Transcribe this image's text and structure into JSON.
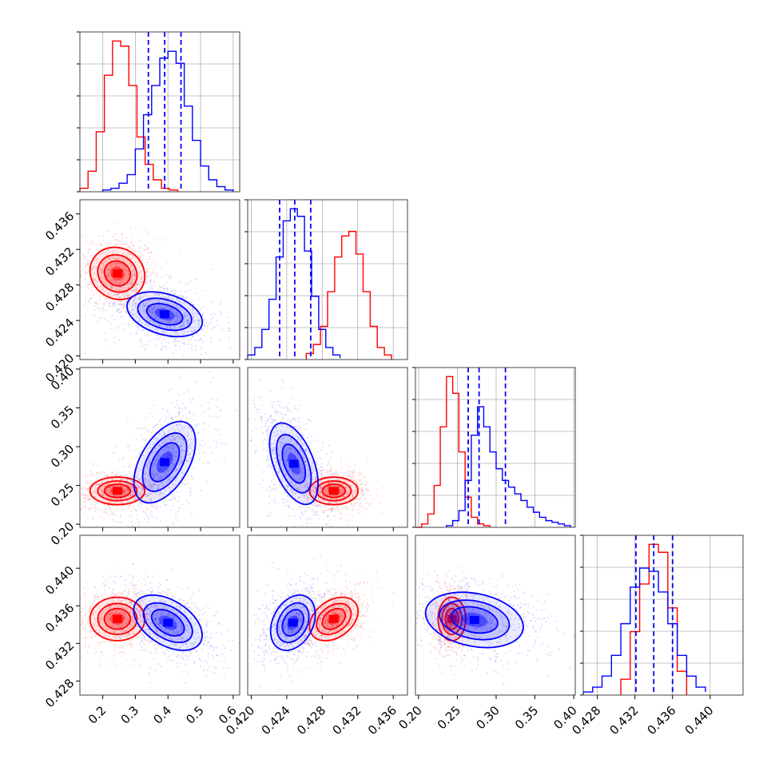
{
  "chart_data": {
    "type": "corner",
    "grid": true,
    "colors": {
      "red": "#ff0000",
      "blue": "#0000ff",
      "grid": "#b0b0b0",
      "frame": "#000000"
    },
    "series": [
      {
        "color": "#ff0000"
      },
      {
        "color": "#0000ff"
      }
    ],
    "params": [
      {
        "range": [
          0.13,
          0.62
        ],
        "ticks": [
          "0.2",
          "0.3",
          "0.4",
          "0.5",
          "0.6"
        ],
        "tick_values": [
          0.2,
          0.3,
          0.4,
          0.5,
          0.6
        ]
      },
      {
        "range": [
          0.4196,
          0.4376
        ],
        "ticks": [
          "0.420",
          "0.424",
          "0.428",
          "0.432",
          "0.436"
        ],
        "tick_values": [
          0.42,
          0.424,
          0.428,
          0.432,
          0.436
        ]
      },
      {
        "range": [
          0.196,
          0.402
        ],
        "ticks": [
          "0.20",
          "0.25",
          "0.30",
          "0.35",
          "0.40"
        ],
        "tick_values": [
          0.2,
          0.25,
          0.3,
          0.35,
          0.4
        ]
      },
      {
        "range": [
          0.4265,
          0.4435
        ],
        "ticks": [
          "0.428",
          "0.432",
          "0.436",
          "0.440"
        ],
        "tick_values": [
          0.428,
          0.432,
          0.436,
          0.44
        ]
      }
    ],
    "histograms": [
      {
        "param": 0,
        "red": {
          "edges": [
            0.13,
            0.155,
            0.18,
            0.205,
            0.23,
            0.255,
            0.28,
            0.305,
            0.33,
            0.355,
            0.38,
            0.405,
            0.43
          ],
          "counts": [
            2,
            12,
            35,
            68,
            88,
            85,
            62,
            32,
            16,
            7,
            2,
            1
          ]
        },
        "blue": {
          "edges": [
            0.2,
            0.225,
            0.25,
            0.275,
            0.3,
            0.325,
            0.35,
            0.375,
            0.4,
            0.425,
            0.45,
            0.475,
            0.5,
            0.525,
            0.55,
            0.575,
            0.6
          ],
          "counts": [
            1,
            2,
            5,
            10,
            25,
            45,
            62,
            78,
            82,
            75,
            50,
            30,
            15,
            7,
            3,
            1
          ]
        },
        "blue_quantiles": [
          0.34,
          0.39,
          0.44
        ]
      },
      {
        "param": 1,
        "red": {
          "edges": [
            0.4262,
            0.427,
            0.4278,
            0.4286,
            0.4294,
            0.4302,
            0.431,
            0.4318,
            0.4326,
            0.4334,
            0.4342,
            0.435,
            0.4358
          ],
          "counts": [
            4,
            10,
            22,
            45,
            68,
            82,
            85,
            70,
            45,
            22,
            8,
            3
          ]
        },
        "blue": {
          "edges": [
            0.4196,
            0.4204,
            0.4212,
            0.422,
            0.4228,
            0.4236,
            0.4244,
            0.4252,
            0.426,
            0.4268,
            0.4276,
            0.4284,
            0.4292,
            0.43
          ],
          "counts": [
            3,
            8,
            20,
            40,
            68,
            92,
            100,
            95,
            72,
            42,
            20,
            8,
            3,
            1
          ]
        },
        "blue_quantiles": [
          0.4232,
          0.4249,
          0.4267
        ]
      },
      {
        "param": 2,
        "red": {
          "edges": [
            0.196,
            0.204,
            0.212,
            0.22,
            0.228,
            0.236,
            0.244,
            0.252,
            0.26,
            0.268,
            0.276,
            0.284,
            0.292
          ],
          "counts": [
            0,
            2,
            8,
            25,
            60,
            90,
            80,
            45,
            18,
            6,
            2,
            1
          ]
        },
        "blue": {
          "edges": [
            0.236,
            0.244,
            0.252,
            0.26,
            0.268,
            0.276,
            0.284,
            0.292,
            0.3,
            0.308,
            0.316,
            0.324,
            0.332,
            0.34,
            0.348,
            0.356,
            0.364,
            0.372,
            0.38,
            0.388,
            0.396
          ],
          "counts": [
            1,
            4,
            10,
            28,
            55,
            72,
            60,
            45,
            35,
            28,
            24,
            20,
            16,
            12,
            9,
            6,
            4,
            3,
            2,
            1
          ]
        },
        "blue_quantiles": [
          0.264,
          0.278,
          0.312
        ]
      },
      {
        "param": 3,
        "red": {
          "edges": [
            0.4305,
            0.4315,
            0.4325,
            0.4335,
            0.4345,
            0.4355,
            0.4365,
            0.4375
          ],
          "counts": [
            10,
            40,
            70,
            95,
            90,
            55,
            15
          ]
        },
        "blue": {
          "edges": [
            0.4265,
            0.4275,
            0.4285,
            0.4295,
            0.4305,
            0.4315,
            0.4325,
            0.4335,
            0.4345,
            0.4355,
            0.4365,
            0.4375,
            0.4385,
            0.4395
          ],
          "counts": [
            2,
            5,
            12,
            25,
            45,
            68,
            80,
            78,
            65,
            45,
            25,
            12,
            5,
            2
          ]
        },
        "blue_quantiles": [
          0.4321,
          0.434,
          0.436
        ]
      }
    ],
    "pairs": [
      {
        "x": 0,
        "y": 1,
        "red": {
          "center": [
            0.245,
            0.4293
          ],
          "sigma": [
            0.04,
            0.0014
          ],
          "rho": -0.1
        },
        "blue": {
          "center": [
            0.39,
            0.4247
          ],
          "sigma": [
            0.055,
            0.0012
          ],
          "rho": -0.35
        }
      },
      {
        "x": 0,
        "y": 2,
        "red": {
          "center": [
            0.245,
            0.243
          ],
          "sigma": [
            0.04,
            0.0085
          ],
          "rho": 0.0
        },
        "blue": {
          "center": [
            0.39,
            0.28
          ],
          "sigma": [
            0.045,
            0.025
          ],
          "rho": 0.5
        }
      },
      {
        "x": 1,
        "y": 2,
        "red": {
          "center": [
            0.4293,
            0.243
          ],
          "sigma": [
            0.0013,
            0.0085
          ],
          "rho": 0.0
        },
        "blue": {
          "center": [
            0.4248,
            0.278
          ],
          "sigma": [
            0.0013,
            0.025
          ],
          "rho": -0.5
        }
      },
      {
        "x": 0,
        "y": 3,
        "red": {
          "center": [
            0.245,
            0.4346
          ],
          "sigma": [
            0.04,
            0.0011
          ],
          "rho": 0.0
        },
        "blue": {
          "center": [
            0.4,
            0.4342
          ],
          "sigma": [
            0.05,
            0.0014
          ],
          "rho": -0.45
        }
      },
      {
        "x": 1,
        "y": 3,
        "red": {
          "center": [
            0.4293,
            0.4346
          ],
          "sigma": [
            0.0013,
            0.0011
          ],
          "rho": 0.35
        },
        "blue": {
          "center": [
            0.4247,
            0.4342
          ],
          "sigma": [
            0.0012,
            0.0014
          ],
          "rho": 0.3
        }
      },
      {
        "x": 2,
        "y": 3,
        "red": {
          "center": [
            0.243,
            0.4346
          ],
          "sigma": [
            0.0085,
            0.0011
          ],
          "rho": 0.0
        },
        "blue": {
          "center": [
            0.272,
            0.4345
          ],
          "sigma": [
            0.03,
            0.0014
          ],
          "rho": -0.25
        }
      }
    ]
  }
}
